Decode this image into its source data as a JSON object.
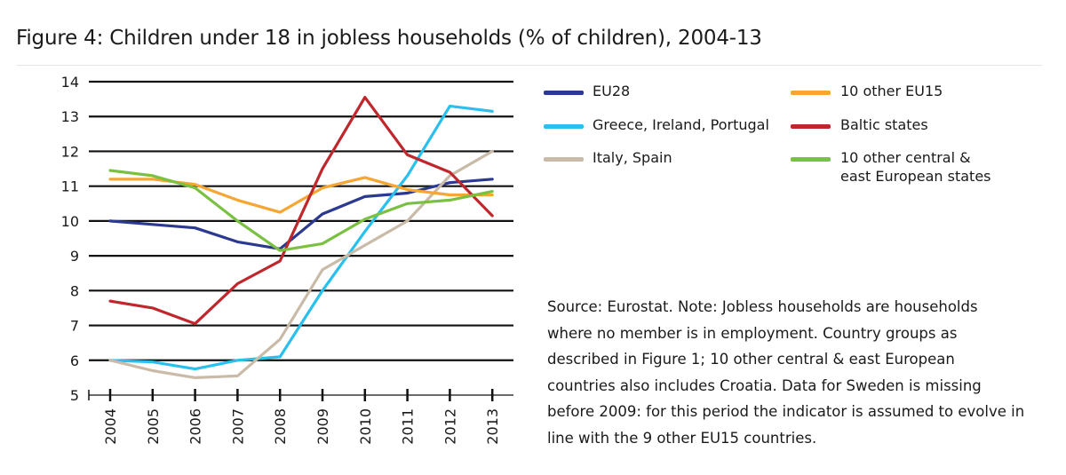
{
  "title": "Figure 4: Children under 18 in jobless households (% of children), 2004-13",
  "source_note": "Source: Eurostat. Note: Jobless households are households where no member is in employment. Country groups as described in Figure 1; 10 other central & east European countries also includes Croatia. Data for Sweden is missing before 2009: for this period the indicator is assumed to evolve in line with the 9 other EU15 countries.",
  "chart_data": {
    "type": "line",
    "title": "Figure 4: Children under 18 in jobless households (% of children), 2004-13",
    "xlabel": "",
    "ylabel": "",
    "x": [
      "2004",
      "2005",
      "2006",
      "2007",
      "2008",
      "2009",
      "2010",
      "2011",
      "2012",
      "2013"
    ],
    "ylim": [
      5,
      14
    ],
    "yticks": [
      "5",
      "6",
      "7",
      "8",
      "9",
      "10",
      "11",
      "12",
      "13",
      "14"
    ],
    "grid": true,
    "legend_position": "top-right",
    "series": [
      {
        "name": "EU28",
        "color": "#2b3990",
        "values": [
          10.0,
          9.9,
          9.8,
          9.4,
          9.2,
          10.2,
          10.7,
          10.8,
          11.1,
          11.2
        ]
      },
      {
        "name": "Greece, Ireland, Portugal",
        "color": "#29c0ee",
        "values": [
          6.0,
          5.95,
          5.75,
          6.0,
          6.1,
          8.0,
          9.7,
          11.3,
          13.3,
          13.15
        ]
      },
      {
        "name": "Italy, Spain",
        "color": "#c9bba8",
        "values": [
          6.0,
          5.7,
          5.5,
          5.55,
          6.6,
          8.6,
          9.3,
          10.0,
          11.3,
          12.0
        ]
      },
      {
        "name": "10 other EU15",
        "color": "#f7a533",
        "values": [
          11.2,
          11.2,
          11.05,
          10.6,
          10.25,
          10.95,
          11.25,
          10.9,
          10.75,
          10.75
        ]
      },
      {
        "name": "Baltic states",
        "color": "#c0272d",
        "values": [
          7.7,
          7.5,
          7.05,
          8.2,
          8.85,
          11.5,
          13.55,
          11.9,
          11.4,
          10.15
        ]
      },
      {
        "name": "10 other central & east European states",
        "label_lines": [
          "10 other central &",
          "east European states"
        ],
        "color": "#7ac142",
        "values": [
          11.45,
          11.3,
          10.95,
          10.0,
          9.15,
          9.35,
          10.05,
          10.5,
          10.6,
          10.85
        ]
      }
    ]
  }
}
